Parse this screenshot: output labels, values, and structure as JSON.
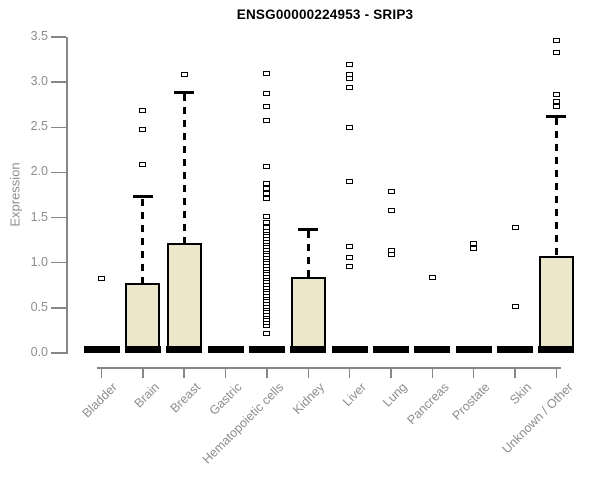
{
  "chart_data": {
    "type": "boxplot",
    "title": "ENSG00000224953 - SRIP3",
    "ylabel": "Expression",
    "xlabel": "",
    "ylim": [
      0,
      3.5
    ],
    "yticks": [
      0,
      0.5,
      1,
      1.5,
      2,
      2.5,
      3,
      3.5
    ],
    "ytick_labels": [
      "0.0",
      "0.5",
      "1.0",
      "1.5",
      "2.0",
      "2.5",
      "3.0",
      "3.5"
    ],
    "grid": false,
    "legend": "none",
    "box_fill": "#ece6cb",
    "box_stroke": "#000000",
    "axis_color": "#868686",
    "label_color": "#8d8d8d",
    "categories": [
      "Bladder",
      "Brain",
      "Breast",
      "Gastric",
      "Hematopoietic cells",
      "Kidney",
      "Liver",
      "Lung",
      "Pancreas",
      "Prostate",
      "Skin",
      "Unknown / Other"
    ],
    "series": [
      {
        "name": "Bladder",
        "q1": 0,
        "median": 0.03,
        "q3": 0.04,
        "whisker_low": 0,
        "whisker_high": 0.05,
        "outliers": [
          0.82
        ]
      },
      {
        "name": "Brain",
        "q1": 0,
        "median": 0.03,
        "q3": 0.78,
        "whisker_low": 0,
        "whisker_high": 1.73,
        "outliers": [
          2.09,
          2.47,
          2.69
        ]
      },
      {
        "name": "Breast",
        "q1": 0,
        "median": 0.03,
        "q3": 1.22,
        "whisker_low": 0,
        "whisker_high": 2.89,
        "outliers": [
          3.08
        ]
      },
      {
        "name": "Gastric",
        "q1": 0,
        "median": 0.03,
        "q3": 0.04,
        "whisker_low": 0,
        "whisker_high": 0.05,
        "outliers": []
      },
      {
        "name": "Hematopoietic cells",
        "q1": 0,
        "median": 0.03,
        "q3": 0.05,
        "whisker_low": 0,
        "whisker_high": 0.08,
        "outliers": [
          0.22,
          0.31,
          0.34,
          0.37,
          0.4,
          0.43,
          0.46,
          0.49,
          0.52,
          0.55,
          0.58,
          0.61,
          0.64,
          0.67,
          0.7,
          0.73,
          0.76,
          0.79,
          0.82,
          0.85,
          0.88,
          0.91,
          0.94,
          0.97,
          1.0,
          1.03,
          1.06,
          1.09,
          1.12,
          1.15,
          1.18,
          1.21,
          1.24,
          1.27,
          1.3,
          1.33,
          1.36,
          1.39,
          1.45,
          1.51,
          1.71,
          1.77,
          1.82,
          1.88,
          2.06,
          2.57,
          2.73,
          2.87,
          3.09
        ]
      },
      {
        "name": "Kidney",
        "q1": 0,
        "median": 0.03,
        "q3": 0.84,
        "whisker_low": 0,
        "whisker_high": 1.37,
        "outliers": []
      },
      {
        "name": "Liver",
        "q1": 0,
        "median": 0.03,
        "q3": 0.04,
        "whisker_low": 0,
        "whisker_high": 0.05,
        "outliers": [
          0.96,
          1.06,
          1.18,
          1.9,
          2.5,
          2.94,
          3.04,
          3.08,
          3.2
        ]
      },
      {
        "name": "Lung",
        "q1": 0,
        "median": 0.03,
        "q3": 0.04,
        "whisker_low": 0,
        "whisker_high": 0.05,
        "outliers": [
          1.09,
          1.14,
          1.58,
          1.79
        ]
      },
      {
        "name": "Pancreas",
        "q1": 0,
        "median": 0.03,
        "q3": 0.04,
        "whisker_low": 0,
        "whisker_high": 0.05,
        "outliers": [
          0.84
        ]
      },
      {
        "name": "Prostate",
        "q1": 0,
        "median": 0.03,
        "q3": 0.04,
        "whisker_low": 0,
        "whisker_high": 0.05,
        "outliers": [
          1.16,
          1.21
        ]
      },
      {
        "name": "Skin",
        "q1": 0,
        "median": 0.03,
        "q3": 0.04,
        "whisker_low": 0,
        "whisker_high": 0.05,
        "outliers": [
          0.52,
          1.39
        ]
      },
      {
        "name": "Unknown / Other",
        "q1": 0,
        "median": 0.03,
        "q3": 1.07,
        "whisker_low": 0,
        "whisker_high": 2.62,
        "outliers": [
          2.73,
          2.79,
          2.86,
          3.33,
          3.46
        ]
      }
    ]
  }
}
